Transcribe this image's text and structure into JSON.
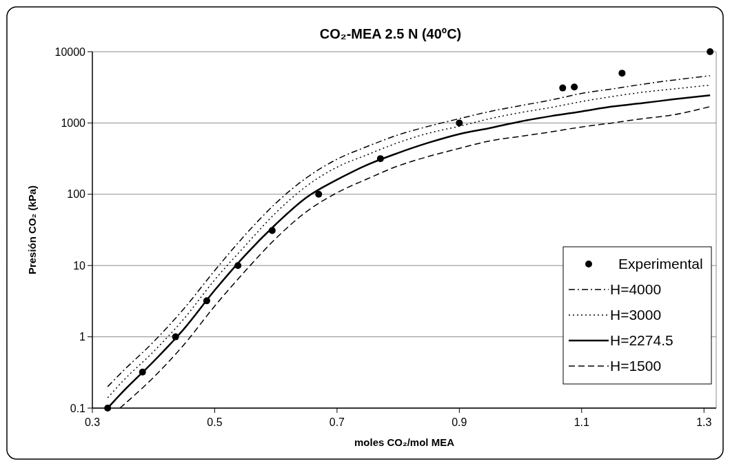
{
  "chart_data": {
    "type": "line",
    "title": "CO₂-MEA 2.5 N (40ºC)",
    "xlabel": "moles CO₂/mol MEA",
    "ylabel": "Presión CO₂ (kPa)",
    "log": "y",
    "xlim": [
      0.3,
      1.32
    ],
    "xticks": [
      0.3,
      0.5,
      0.7,
      0.9,
      1.1,
      1.3
    ],
    "ylim": [
      0.1,
      10000
    ],
    "yticks": [
      0.1,
      1,
      10,
      100,
      1000,
      10000
    ],
    "grid": "y",
    "legend": "right",
    "series": [
      {
        "name": "Experimental",
        "type": "scatter",
        "color": "#000000",
        "marker": "circle",
        "x": [
          0.325,
          0.382,
          0.436,
          0.487,
          0.538,
          0.594,
          0.67,
          0.771,
          0.9,
          1.069,
          1.088,
          1.166,
          1.31
        ],
        "values": [
          0.1,
          0.32,
          1,
          3.2,
          10,
          31,
          100,
          316,
          1000,
          3100,
          3200,
          5000,
          10000
        ]
      },
      {
        "name": "H=4000",
        "color": "#000000",
        "marker": "none",
        "line_style": "dashdot",
        "x": [
          0.325,
          0.35,
          0.4,
          0.45,
          0.5,
          0.55,
          0.6,
          0.65,
          0.7,
          0.75,
          0.8,
          0.85,
          0.9,
          0.95,
          1.0,
          1.05,
          1.1,
          1.15,
          1.2,
          1.25,
          1.31
        ],
        "values": [
          0.2,
          0.33,
          0.85,
          2.5,
          8.5,
          27,
          75,
          170,
          310,
          470,
          680,
          900,
          1150,
          1450,
          1750,
          2100,
          2600,
          3000,
          3500,
          4000,
          4600
        ]
      },
      {
        "name": "H=3000",
        "color": "#000000",
        "marker": "none",
        "line_style": "dotted",
        "x": [
          0.325,
          0.35,
          0.4,
          0.45,
          0.5,
          0.55,
          0.6,
          0.65,
          0.7,
          0.75,
          0.8,
          0.85,
          0.9,
          0.95,
          1.0,
          1.05,
          1.1,
          1.15,
          1.2,
          1.25,
          1.31
        ],
        "values": [
          0.14,
          0.24,
          0.62,
          1.8,
          6.3,
          19,
          55,
          130,
          240,
          360,
          530,
          720,
          900,
          1150,
          1400,
          1650,
          2000,
          2350,
          2700,
          3000,
          3400
        ]
      },
      {
        "name": "H=2274.5",
        "color": "#000000",
        "marker": "none",
        "line_style": "solid",
        "x": [
          0.325,
          0.35,
          0.4,
          0.45,
          0.5,
          0.55,
          0.6,
          0.65,
          0.7,
          0.75,
          0.8,
          0.85,
          0.9,
          0.95,
          1.0,
          1.05,
          1.1,
          1.15,
          1.2,
          1.25,
          1.31
        ],
        "values": [
          0.1,
          0.17,
          0.45,
          1.3,
          4.5,
          14,
          38,
          90,
          160,
          260,
          380,
          530,
          700,
          850,
          1050,
          1250,
          1450,
          1700,
          1900,
          2150,
          2450
        ]
      },
      {
        "name": "H=1500",
        "color": "#000000",
        "marker": "none",
        "line_style": "dashed",
        "x": [
          0.345,
          0.4,
          0.45,
          0.5,
          0.55,
          0.6,
          0.65,
          0.7,
          0.75,
          0.8,
          0.85,
          0.9,
          0.95,
          1.0,
          1.05,
          1.1,
          1.15,
          1.2,
          1.25,
          1.31
        ],
        "values": [
          0.1,
          0.27,
          0.78,
          2.7,
          8.4,
          24,
          57,
          105,
          165,
          250,
          340,
          440,
          560,
          650,
          750,
          880,
          1000,
          1150,
          1300,
          1700
        ]
      }
    ]
  }
}
